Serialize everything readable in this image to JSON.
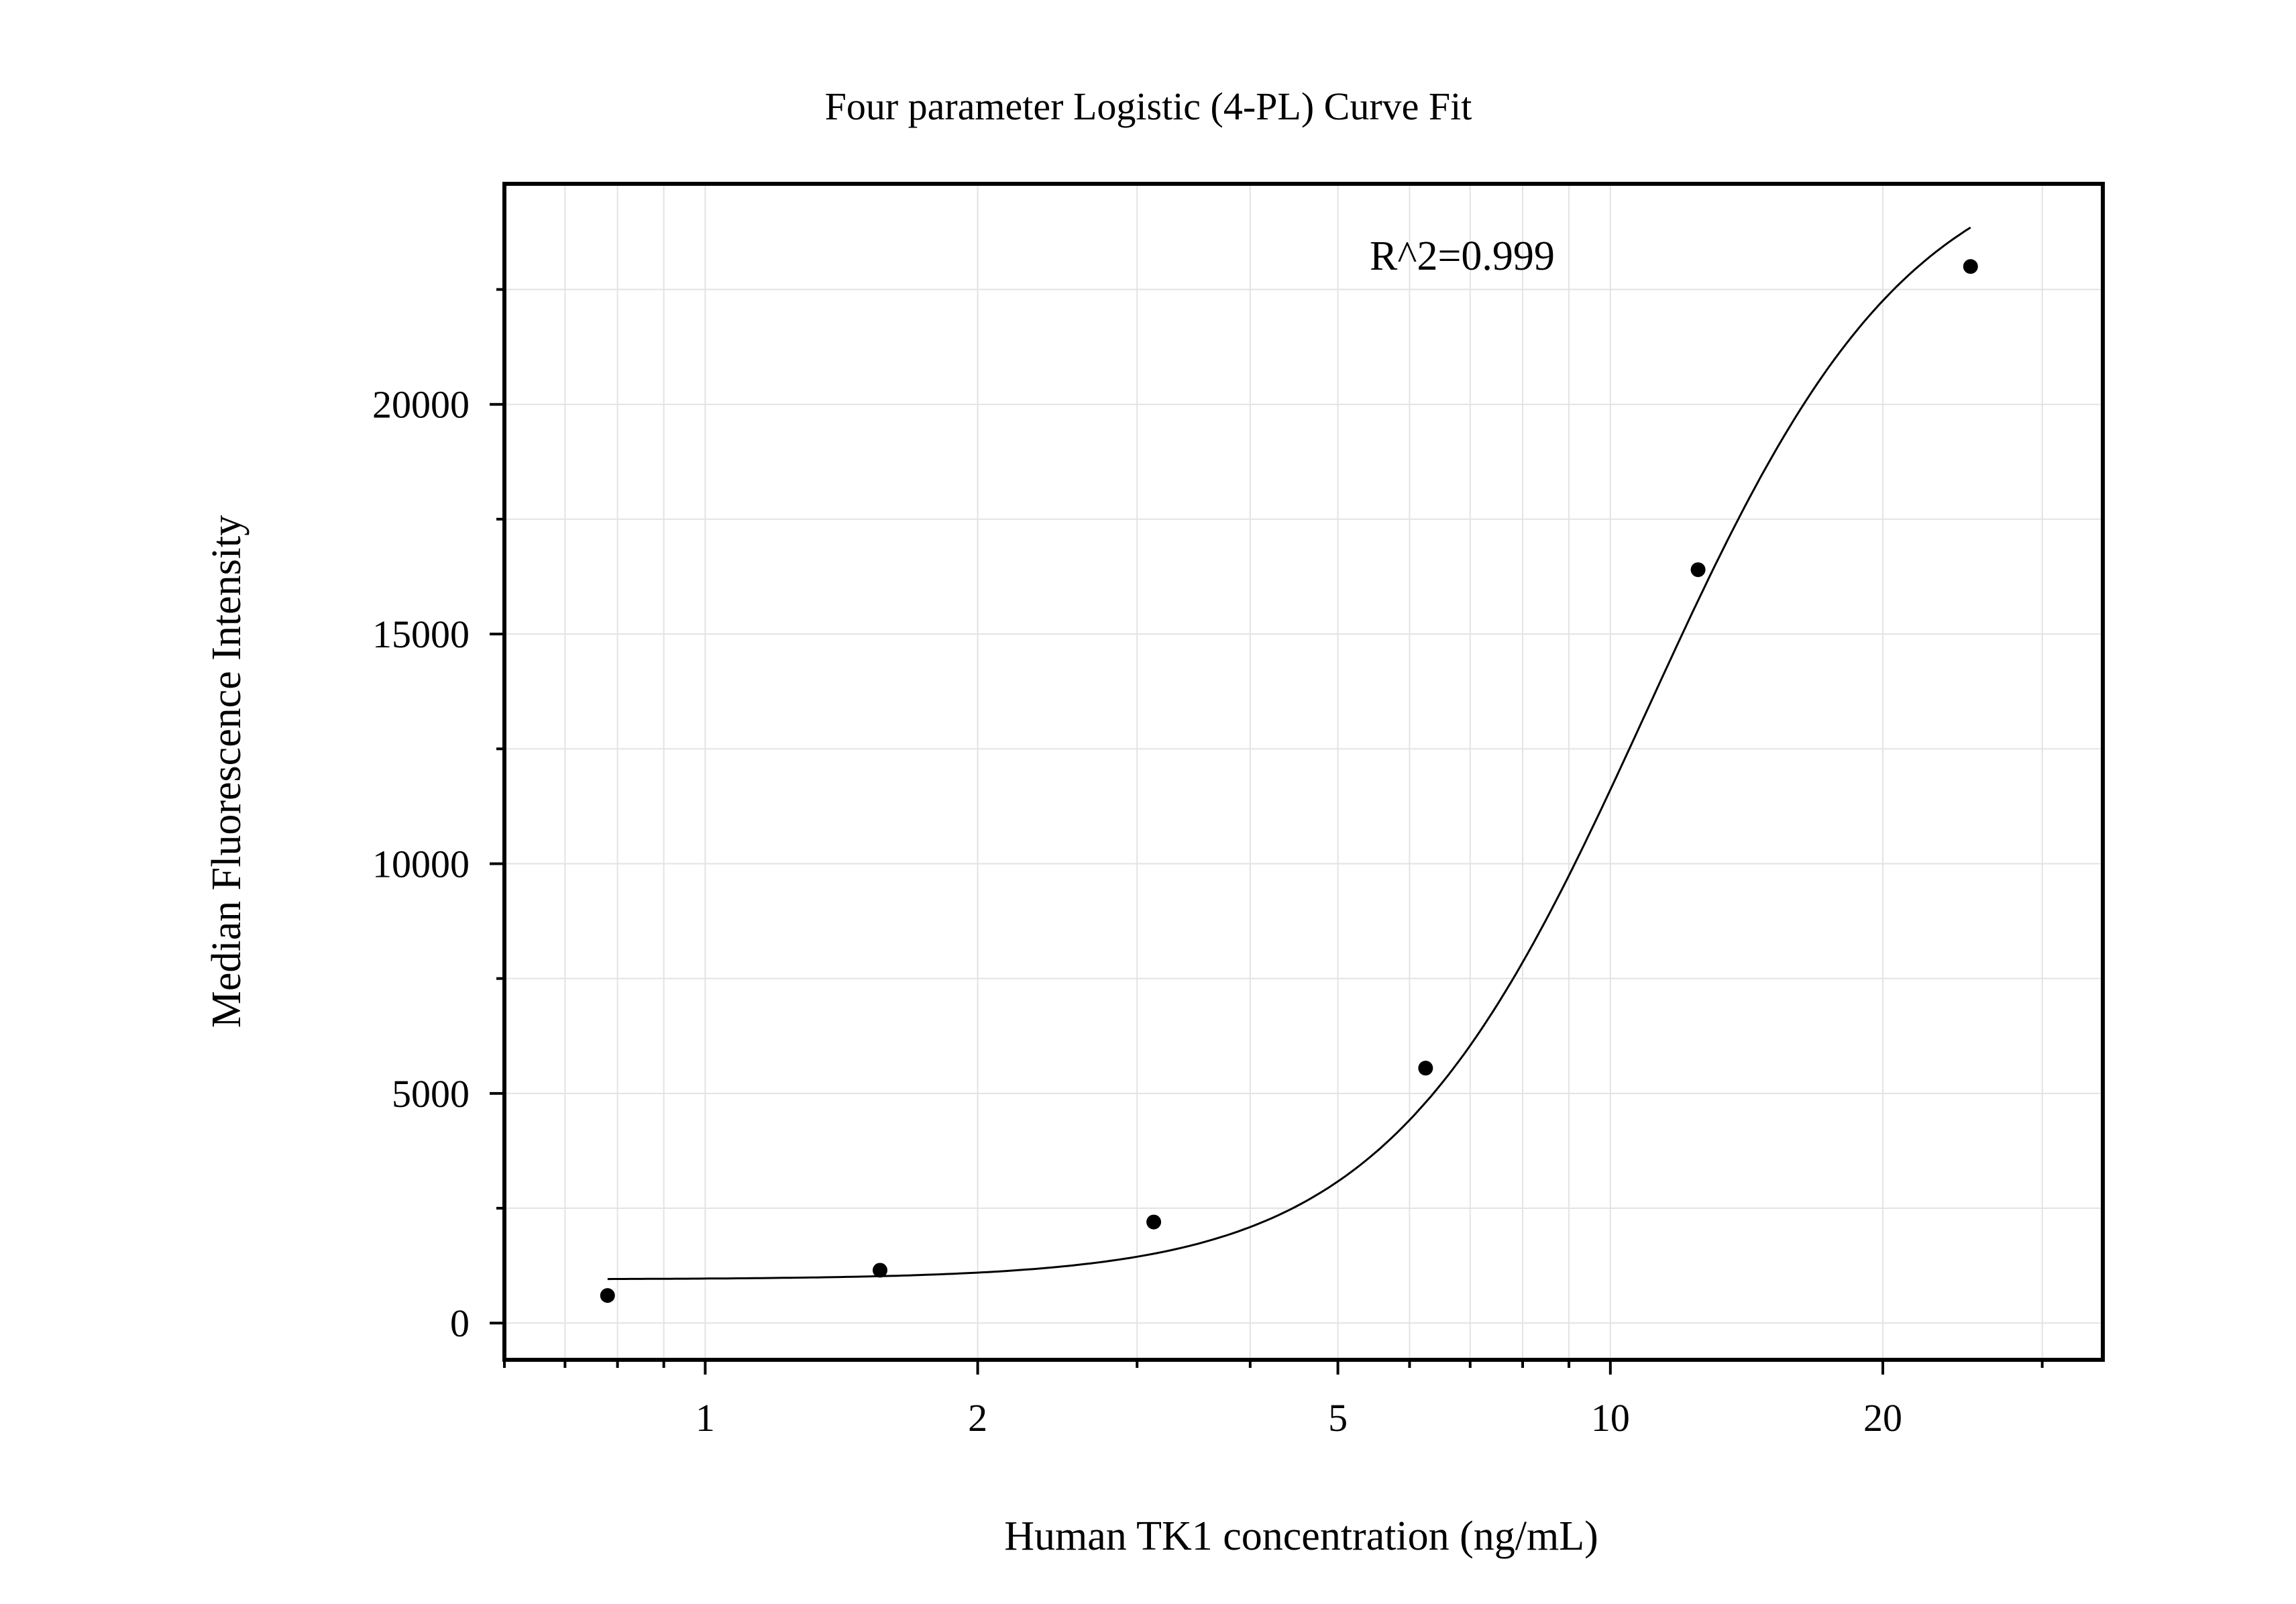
{
  "chart_data": {
    "type": "scatter",
    "title": "Four parameter Logistic (4-PL) Curve Fit",
    "xlabel": "Human TK1 concentration (ng/mL)",
    "ylabel": "Median Fluorescence Intensity",
    "x_scale": "log",
    "xlim": [
      0.6,
      35
    ],
    "ylim": [
      -800,
      24800
    ],
    "x_ticks": [
      {
        "value": 1,
        "label": "1"
      },
      {
        "value": 2,
        "label": "2"
      },
      {
        "value": 5,
        "label": "5"
      },
      {
        "value": 10,
        "label": "10"
      },
      {
        "value": 20,
        "label": "20"
      }
    ],
    "y_ticks": [
      {
        "value": 0,
        "label": "0"
      },
      {
        "value": 5000,
        "label": "5000"
      },
      {
        "value": 10000,
        "label": "10000"
      },
      {
        "value": 15000,
        "label": "15000"
      },
      {
        "value": 20000,
        "label": "20000"
      }
    ],
    "grid": true,
    "annotation": "R^2=0.999",
    "series": [
      {
        "points": [
          {
            "x": 0.78,
            "y": 600
          },
          {
            "x": 1.56,
            "y": 1150
          },
          {
            "x": 3.13,
            "y": 2200
          },
          {
            "x": 6.25,
            "y": 5550
          },
          {
            "x": 12.5,
            "y": 16400
          },
          {
            "x": 25,
            "y": 23000
          }
        ],
        "fit": {
          "model": "4PL",
          "x_range": [
            0.78,
            25
          ],
          "A": 950,
          "B": 3.0,
          "C": 11.0,
          "D": 25800
        },
        "marker_color": "#000000",
        "line_color": "#000000"
      }
    ]
  }
}
